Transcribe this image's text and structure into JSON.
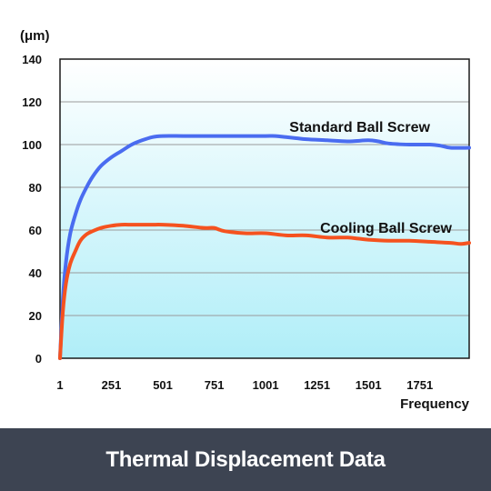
{
  "chart_data": {
    "type": "line",
    "title": "Thermal Displacement Data",
    "ylabel": "(μm)",
    "xlabel": "Frequency",
    "ylim": [
      0,
      140
    ],
    "xlim": [
      1,
      1991
    ],
    "y_ticks": [
      0,
      20,
      40,
      60,
      80,
      100,
      120,
      140
    ],
    "x_ticks": [
      1,
      251,
      501,
      751,
      1001,
      1251,
      1501,
      1751
    ],
    "grid": true,
    "background_gradient": [
      "#ffffff",
      "#b0eef8"
    ],
    "series": [
      {
        "name": "Standard Ball Screw",
        "color": "#4a6cf0",
        "x": [
          1,
          15,
          30,
          50,
          75,
          100,
          130,
          160,
          200,
          250,
          300,
          350,
          400,
          450,
          500,
          600,
          700,
          800,
          900,
          1000,
          1050,
          1100,
          1150,
          1200,
          1300,
          1400,
          1500,
          1550,
          1600,
          1700,
          1800,
          1850,
          1900,
          1991
        ],
        "y": [
          0,
          28,
          45,
          58,
          67,
          74,
          80,
          85,
          90,
          94,
          97,
          100,
          102,
          103.5,
          104,
          104,
          104,
          104,
          104,
          104,
          104,
          103.5,
          103,
          102.5,
          102,
          101.5,
          102,
          101.5,
          100.5,
          100,
          100,
          99.5,
          98.5,
          98.5
        ]
      },
      {
        "name": "Cooling Ball Screw",
        "color": "#f5521f",
        "x": [
          1,
          15,
          30,
          50,
          75,
          100,
          130,
          160,
          200,
          250,
          300,
          350,
          400,
          450,
          500,
          600,
          700,
          750,
          800,
          900,
          1000,
          1100,
          1200,
          1300,
          1400,
          1450,
          1500,
          1600,
          1700,
          1800,
          1900,
          1950,
          1991
        ],
        "y": [
          0,
          22,
          35,
          44,
          50,
          55,
          58,
          59.5,
          61,
          62,
          62.5,
          62.5,
          62.5,
          62.5,
          62.5,
          62,
          61,
          61,
          59.5,
          58.5,
          58.5,
          57.5,
          57.5,
          56.5,
          56.5,
          56,
          55.5,
          55,
          55,
          54.5,
          54,
          53.5,
          54
        ]
      }
    ]
  }
}
